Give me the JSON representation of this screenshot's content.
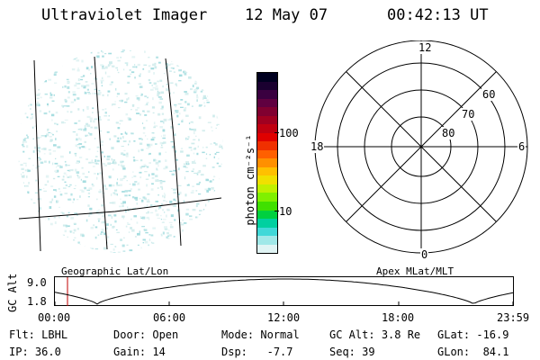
{
  "header": {
    "instrument": "Ultraviolet Imager",
    "date": "12 May 07",
    "time": "00:42:13 UT"
  },
  "colorbar": {
    "unit_label": "photon cm⁻²s⁻¹",
    "ticks": [
      "100",
      "10"
    ],
    "colors": [
      "#000020",
      "#1a0030",
      "#3a0040",
      "#600040",
      "#800030",
      "#a00020",
      "#c00010",
      "#e00000",
      "#f03000",
      "#ff6000",
      "#ff9000",
      "#ffc000",
      "#f0e000",
      "#c0f000",
      "#80f000",
      "#40e000",
      "#00d040",
      "#00d0a0",
      "#40d8d8",
      "#a0e8e8",
      "#e0f4f4"
    ]
  },
  "polar_plot": {
    "mlt_labels": {
      "top": "12",
      "left": "18",
      "right": "6",
      "bottom": "0"
    },
    "lat_labels": [
      "60",
      "70",
      "80"
    ]
  },
  "altitude_panel": {
    "y_label": "GC Alt",
    "y_ticks": [
      "9.0",
      "1.8"
    ],
    "left_title": "Geographic Lat/Lon",
    "right_title": "Apex MLat/MLT",
    "x_ticks": [
      "00:00",
      "06:00",
      "12:00",
      "18:00",
      "23:59"
    ]
  },
  "status": {
    "row1": [
      {
        "label": "Flt:",
        "value": "LBHL"
      },
      {
        "label": "Door:",
        "value": "Open"
      },
      {
        "label": "Mode:",
        "value": "Normal"
      },
      {
        "label": "GC Alt:",
        "value": "3.8 Re"
      },
      {
        "label": "GLat:",
        "value": "-16.9"
      }
    ],
    "row2": [
      {
        "label": "IP:",
        "value": "36.0"
      },
      {
        "label": "Gain:",
        "value": "14"
      },
      {
        "label": "Dsp:",
        "value": "-7.7"
      },
      {
        "label": "Seq:",
        "value": "39"
      },
      {
        "label": "GLon:",
        "value": "84.1"
      }
    ]
  }
}
